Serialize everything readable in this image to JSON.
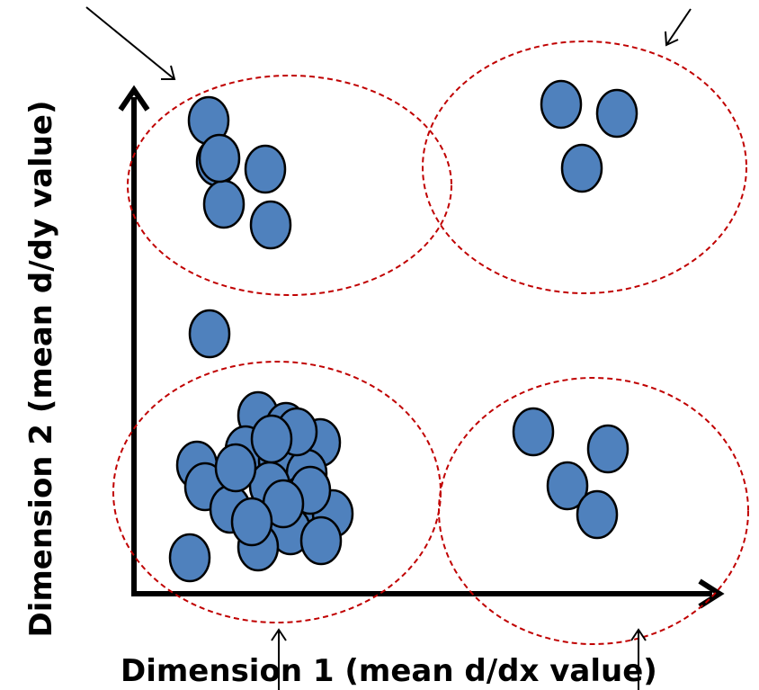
{
  "axes": {
    "xlabel": "Dimension 1 (mean d/dx value)",
    "ylabel": "Dimension 2 (mean d/dy value)"
  },
  "colors": {
    "point_fill": "#4f81bd",
    "point_stroke": "#000000",
    "cluster_outline": "#c00000",
    "axis": "#000000"
  },
  "chart_data": {
    "type": "scatter",
    "xlabel": "Dimension 1 (mean d/dx value)",
    "ylabel": "Dimension 2 (mean d/dy value)",
    "grid": false,
    "regions": [
      "top-left",
      "top-right",
      "bottom-left",
      "bottom-right"
    ],
    "cluster_counts": {
      "top-left": 6,
      "top-right": 3,
      "bottom-left": 22,
      "bottom-right": 4,
      "unassigned": 1
    }
  }
}
